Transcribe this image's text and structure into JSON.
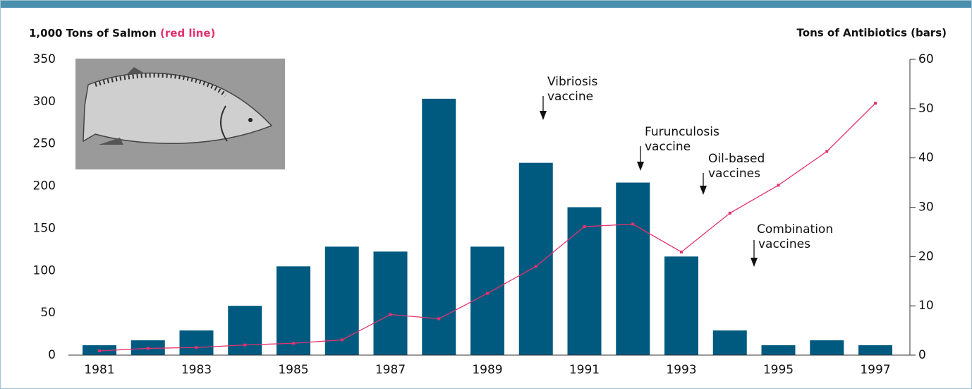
{
  "chart_data": {
    "type": "bar-line",
    "ylabel": "1,000 Tons of Salmon",
    "ylabel_note": "(red line)",
    "y2label": "Tons of Antibiotics (bars)",
    "categories": [
      "1981",
      null,
      "1983",
      null,
      "1985",
      null,
      "1987",
      null,
      "1989",
      null,
      "1991",
      null,
      "1993",
      null,
      "1995",
      null,
      "1997"
    ],
    "series": [
      {
        "type": "bar",
        "axis": "y2",
        "color": "#005a80",
        "values": [
          2,
          3,
          5,
          10,
          18,
          22,
          21,
          52,
          22,
          39,
          30,
          35,
          20,
          5,
          2,
          3,
          2
        ]
      },
      {
        "type": "line",
        "color": "#e3326e",
        "values": [
          5,
          8,
          9,
          12,
          14,
          18,
          48,
          43,
          73,
          105,
          152,
          155,
          122,
          168,
          201,
          241,
          298
        ]
      }
    ],
    "ylim": [
      0,
      350
    ],
    "yticks": [
      0,
      50,
      100,
      150,
      200,
      250,
      300,
      350
    ],
    "y2lim": [
      0,
      60
    ],
    "y2ticks": [
      0,
      10,
      20,
      30,
      40,
      50,
      60
    ],
    "annotations": [
      {
        "lines": [
          "Vibriosis",
          "vaccine"
        ]
      },
      {
        "lines": [
          "Furunculosis",
          "vaccine"
        ]
      },
      {
        "lines": [
          "Oil-based",
          "vaccines"
        ]
      },
      {
        "lines": [
          "Combination",
          "vaccines"
        ]
      }
    ]
  }
}
